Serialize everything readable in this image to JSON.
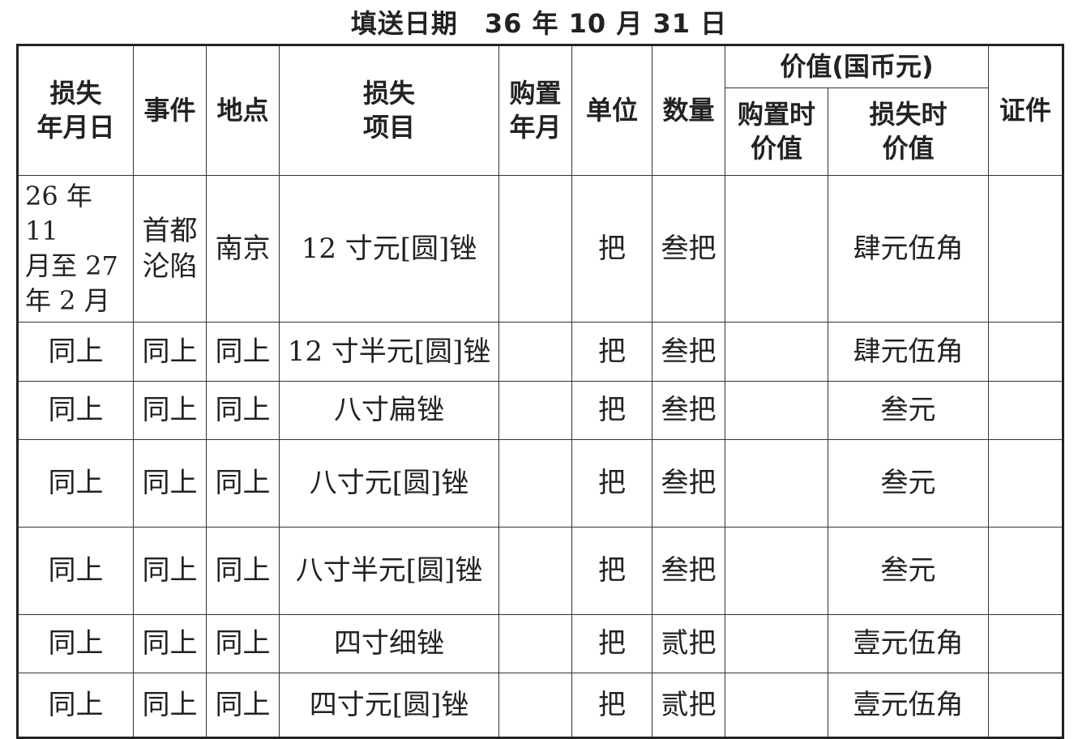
{
  "title": "填送日期　36 年 10 月 31 日",
  "headers": {
    "loss_date": "损失\n年月日",
    "event": "事件",
    "place": "地点",
    "item": "损失\n项目",
    "purchase_date": "购置\n年月",
    "unit": "单位",
    "quantity": "数量",
    "value_group": "价值(国币元)",
    "value_at_purchase": "购置时\n价值",
    "value_at_loss": "损失时\n价值",
    "certificate": "证件"
  },
  "rows": [
    {
      "date": "26 年 11\n月至 27\n年 2 月",
      "event": "首都\n沦陷",
      "place": "南京",
      "item": "12 寸元[圆]锉",
      "purchase_date": "",
      "unit": "把",
      "quantity": "叁把",
      "value_purchase": "",
      "value_loss": "肆元伍角",
      "certificate": ""
    },
    {
      "date": "同上",
      "event": "同上",
      "place": "同上",
      "item": "12 寸半元[圆]锉",
      "purchase_date": "",
      "unit": "把",
      "quantity": "叁把",
      "value_purchase": "",
      "value_loss": "肆元伍角",
      "certificate": ""
    },
    {
      "date": "同上",
      "event": "同上",
      "place": "同上",
      "item": "八寸扁锉",
      "purchase_date": "",
      "unit": "把",
      "quantity": "叁把",
      "value_purchase": "",
      "value_loss": "叁元",
      "certificate": ""
    },
    {
      "date": "同上",
      "event": "同上",
      "place": "同上",
      "item": "八寸元[圆]锉",
      "purchase_date": "",
      "unit": "把",
      "quantity": "叁把",
      "value_purchase": "",
      "value_loss": "叁元",
      "certificate": ""
    },
    {
      "date": "同上",
      "event": "同上",
      "place": "同上",
      "item": "八寸半元[圆]锉",
      "purchase_date": "",
      "unit": "把",
      "quantity": "叁把",
      "value_purchase": "",
      "value_loss": "叁元",
      "certificate": ""
    },
    {
      "date": "同上",
      "event": "同上",
      "place": "同上",
      "item": "四寸细锉",
      "purchase_date": "",
      "unit": "把",
      "quantity": "贰把",
      "value_purchase": "",
      "value_loss": "壹元伍角",
      "certificate": ""
    },
    {
      "date": "同上",
      "event": "同上",
      "place": "同上",
      "item": "四寸元[圆]锉",
      "purchase_date": "",
      "unit": "把",
      "quantity": "贰把",
      "value_purchase": "",
      "value_loss": "壹元伍角",
      "certificate": ""
    }
  ]
}
